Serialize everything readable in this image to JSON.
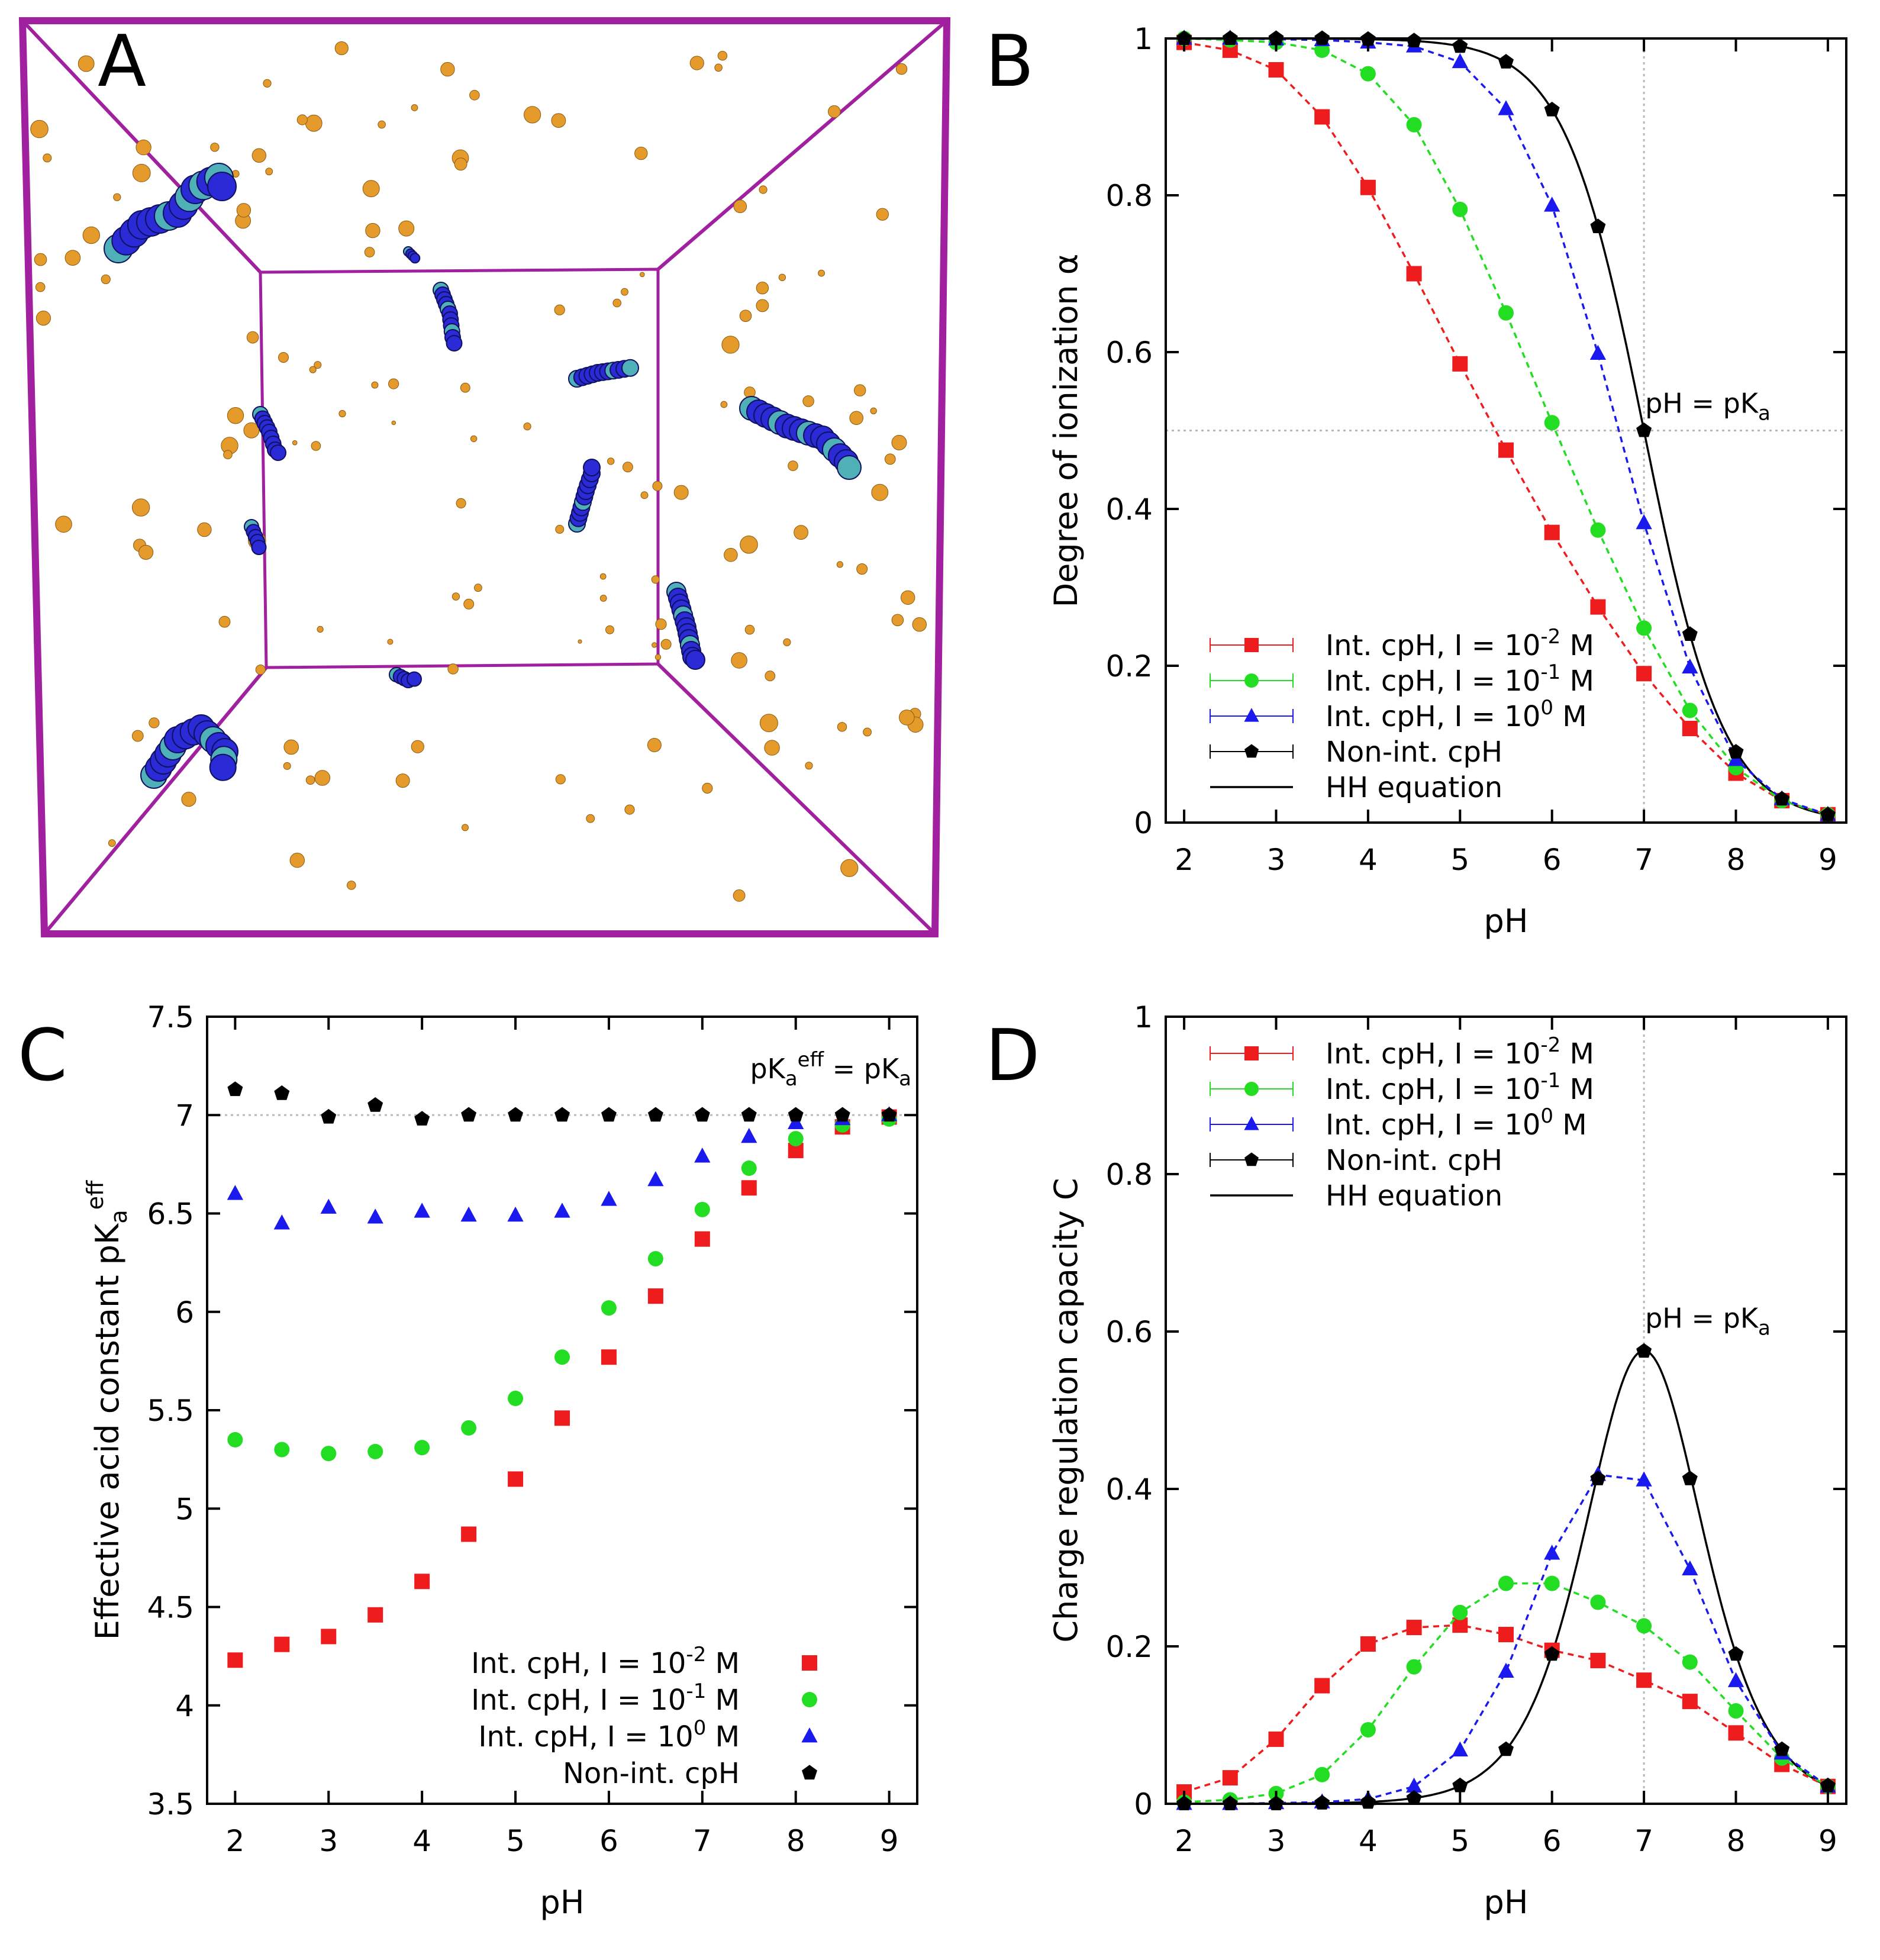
{
  "figure": {
    "panel_labels": [
      "A",
      "B",
      "C",
      "D"
    ]
  },
  "colors": {
    "red": "#ee1c1c",
    "green": "#22dd22",
    "blue": "#1a1aee",
    "black": "#000000",
    "box": "#a020a0",
    "ion": "#e59b2c",
    "chain_dark": "#2a2ad6",
    "chain_light": "#4fb0b8"
  },
  "panelA": {
    "description_icons": [
      "simulation-box",
      "polymer-chain",
      "counterion"
    ]
  },
  "chart_data": [
    {
      "panel": "B",
      "type": "line",
      "xlabel": "pH",
      "ylabel": "Degree of ionization α",
      "xlim": [
        1.8,
        9.2
      ],
      "ylim": [
        0,
        1
      ],
      "xticks": [
        2,
        3,
        4,
        5,
        6,
        7,
        8,
        9
      ],
      "yticks": [
        0,
        0.2,
        0.4,
        0.6,
        0.8,
        1
      ],
      "ytick_labels": [
        "0",
        "0.2",
        "0.4",
        "0.6",
        "0.8",
        "1"
      ],
      "annotation": {
        "text": "pH = pK",
        "sub": "a",
        "x": 7.0,
        "y": 0.5
      },
      "reference_lines": {
        "vertical_x": 7.0,
        "horizontal_y": 0.5
      },
      "legend": {
        "placement": "bottom-left",
        "entries": [
          {
            "pre": "Int. cpH, I = 10",
            "sup": "-2",
            "post": " M",
            "series": "red"
          },
          {
            "pre": "Int. cpH, I = 10",
            "sup": "-1",
            "post": " M",
            "series": "green"
          },
          {
            "pre": "Int. cpH, I = 10",
            "sup": "0",
            "post": " M",
            "series": "blue"
          },
          {
            "pre": "Non-int. cpH",
            "sup": "",
            "post": "",
            "series": "black"
          },
          {
            "pre": "HH equation",
            "sup": "",
            "post": "",
            "series": "hh"
          }
        ]
      },
      "x": [
        2,
        2.5,
        3,
        3.5,
        4,
        4.5,
        5,
        5.5,
        6,
        6.5,
        7,
        7.5,
        8,
        8.5,
        9
      ],
      "series": [
        {
          "name": "Int. cpH, I = 10^-2 M",
          "color": "red",
          "marker": "square",
          "dashed": true,
          "values": [
            0.995,
            0.985,
            0.96,
            0.9,
            0.81,
            0.7,
            0.585,
            0.475,
            0.37,
            0.275,
            0.19,
            0.12,
            0.063,
            0.028,
            0.01
          ]
        },
        {
          "name": "Int. cpH, I = 10^-1 M",
          "color": "green",
          "marker": "circle",
          "dashed": true,
          "values": [
            1.0,
            0.998,
            0.995,
            0.985,
            0.955,
            0.89,
            0.782,
            0.65,
            0.51,
            0.373,
            0.248,
            0.143,
            0.07,
            0.028,
            0.01
          ]
        },
        {
          "name": "Int. cpH, I = 10^0 M",
          "color": "blue",
          "marker": "triangle",
          "dashed": true,
          "values": [
            1.0,
            1.0,
            0.999,
            0.998,
            0.995,
            0.99,
            0.97,
            0.91,
            0.787,
            0.598,
            0.382,
            0.198,
            0.08,
            0.03,
            0.01
          ]
        },
        {
          "name": "Non-int. cpH",
          "color": "black",
          "marker": "pentagon",
          "dashed": false,
          "values": [
            1.0,
            1.0,
            1.0,
            1.0,
            0.999,
            0.997,
            0.99,
            0.97,
            0.909,
            0.76,
            0.5,
            0.24,
            0.09,
            0.03,
            0.01
          ]
        }
      ],
      "hh_curve": {
        "pKa": 7.0,
        "formula": "1/(1+10^(pH-pKa))"
      }
    },
    {
      "panel": "C",
      "type": "scatter",
      "xlabel": "pH",
      "ylabel": "Effective acid constant pK",
      "ylabel_sub": "a",
      "ylabel_sup": "eff",
      "xlim": [
        1.7,
        9.3
      ],
      "ylim": [
        3.5,
        7.5
      ],
      "xticks": [
        2,
        3,
        4,
        5,
        6,
        7,
        8,
        9
      ],
      "yticks": [
        3.5,
        4,
        4.5,
        5,
        5.5,
        6,
        6.5,
        7,
        7.5
      ],
      "ytick_labels": [
        "3.5",
        "4",
        "4.5",
        "5",
        "5.5",
        "6",
        "6.5",
        "7",
        "7.5"
      ],
      "annotation": {
        "pre": "pK",
        "sub": "a",
        "sup": "eff",
        "post": " = pK",
        "post_sub": "a"
      },
      "reference_lines": {
        "horizontal_y": 7.0
      },
      "legend": {
        "placement": "bottom-right",
        "entries": [
          {
            "pre": "Int. cpH, I = 10",
            "sup": "-2",
            "post": " M",
            "series": "red"
          },
          {
            "pre": "Int. cpH, I = 10",
            "sup": "-1",
            "post": " M",
            "series": "green"
          },
          {
            "pre": "Int. cpH, I = 10",
            "sup": "0",
            "post": " M",
            "series": "blue"
          },
          {
            "pre": "Non-int. cpH",
            "sup": "",
            "post": "",
            "series": "black"
          }
        ]
      },
      "x": [
        2,
        2.5,
        3,
        3.5,
        4,
        4.5,
        5,
        5.5,
        6,
        6.5,
        7,
        7.5,
        8,
        8.5,
        9
      ],
      "series": [
        {
          "name": "Int. cpH, I = 10^-2 M",
          "color": "red",
          "marker": "square",
          "dashed": true,
          "values": [
            4.23,
            4.31,
            4.35,
            4.46,
            4.63,
            4.87,
            5.15,
            5.46,
            5.77,
            6.08,
            6.37,
            6.63,
            6.82,
            6.94,
            6.99
          ]
        },
        {
          "name": "Int. cpH, I = 10^-1 M",
          "color": "green",
          "marker": "circle",
          "dashed": true,
          "values": [
            5.35,
            5.3,
            5.28,
            5.29,
            5.31,
            5.41,
            5.56,
            5.77,
            6.02,
            6.27,
            6.52,
            6.73,
            6.88,
            6.95,
            6.98
          ]
        },
        {
          "name": "Int. cpH, I = 10^0 M",
          "color": "blue",
          "marker": "triangle",
          "dashed": true,
          "values": [
            6.6,
            6.45,
            6.53,
            6.48,
            6.51,
            6.49,
            6.49,
            6.51,
            6.57,
            6.67,
            6.79,
            6.89,
            6.96,
            6.98,
            7.0
          ]
        },
        {
          "name": "Non-int. cpH",
          "color": "black",
          "marker": "pentagon",
          "dashed": false,
          "values": [
            7.13,
            7.11,
            6.99,
            7.05,
            6.98,
            7.0,
            7.0,
            7.0,
            7.0,
            7.0,
            7.0,
            7.0,
            7.0,
            7.0,
            7.0
          ]
        }
      ]
    },
    {
      "panel": "D",
      "type": "line",
      "xlabel": "pH",
      "ylabel": "Charge regulation capacity C",
      "xlim": [
        1.8,
        9.2
      ],
      "ylim": [
        0,
        1
      ],
      "xticks": [
        2,
        3,
        4,
        5,
        6,
        7,
        8,
        9
      ],
      "yticks": [
        0,
        0.2,
        0.4,
        0.6,
        0.8,
        1
      ],
      "ytick_labels": [
        "0",
        "0.2",
        "0.4",
        "0.6",
        "0.8",
        "1"
      ],
      "annotation": {
        "text": "pH = pK",
        "sub": "a",
        "x": 7.0,
        "y": 0.575
      },
      "reference_lines": {
        "vertical_x": 7.0
      },
      "legend": {
        "placement": "top-left",
        "entries": [
          {
            "pre": "Int. cpH, I = 10",
            "sup": "-2",
            "post": " M",
            "series": "red"
          },
          {
            "pre": "Int. cpH, I = 10",
            "sup": "-1",
            "post": " M",
            "series": "green"
          },
          {
            "pre": "Int. cpH, I = 10",
            "sup": "0",
            "post": " M",
            "series": "blue"
          },
          {
            "pre": "Non-int. cpH",
            "sup": "",
            "post": "",
            "series": "black"
          },
          {
            "pre": "HH equation",
            "sup": "",
            "post": "",
            "series": "hh"
          }
        ]
      },
      "x": [
        2,
        2.5,
        3,
        3.5,
        4,
        4.5,
        5,
        5.5,
        6,
        6.5,
        7,
        7.5,
        8,
        8.5,
        9
      ],
      "series": [
        {
          "name": "Int. cpH, I = 10^-2 M",
          "color": "red",
          "marker": "square",
          "dashed": true,
          "values": [
            0.015,
            0.033,
            0.082,
            0.15,
            0.203,
            0.224,
            0.227,
            0.215,
            0.195,
            0.182,
            0.157,
            0.13,
            0.09,
            0.05,
            0.022
          ]
        },
        {
          "name": "Int. cpH, I = 10^-1 M",
          "color": "green",
          "marker": "circle",
          "dashed": true,
          "values": [
            0.002,
            0.005,
            0.013,
            0.037,
            0.094,
            0.174,
            0.243,
            0.28,
            0.28,
            0.256,
            0.226,
            0.18,
            0.118,
            0.058,
            0.022
          ]
        },
        {
          "name": "Int. cpH, I = 10^0 M",
          "color": "blue",
          "marker": "triangle",
          "dashed": true,
          "values": [
            0.0,
            0.0,
            0.001,
            0.002,
            0.006,
            0.022,
            0.068,
            0.168,
            0.318,
            0.418,
            0.411,
            0.298,
            0.156,
            0.064,
            0.022
          ]
        },
        {
          "name": "Non-int. cpH",
          "color": "black",
          "marker": "pentagon",
          "dashed": false,
          "values": [
            0.0,
            0.0,
            0.0,
            0.001,
            0.002,
            0.007,
            0.023,
            0.069,
            0.19,
            0.413,
            0.575,
            0.413,
            0.19,
            0.069,
            0.023
          ]
        }
      ],
      "hh_curve": {
        "pKa": 7.0,
        "formula": "ln(10)*a*(1-a)"
      }
    }
  ]
}
